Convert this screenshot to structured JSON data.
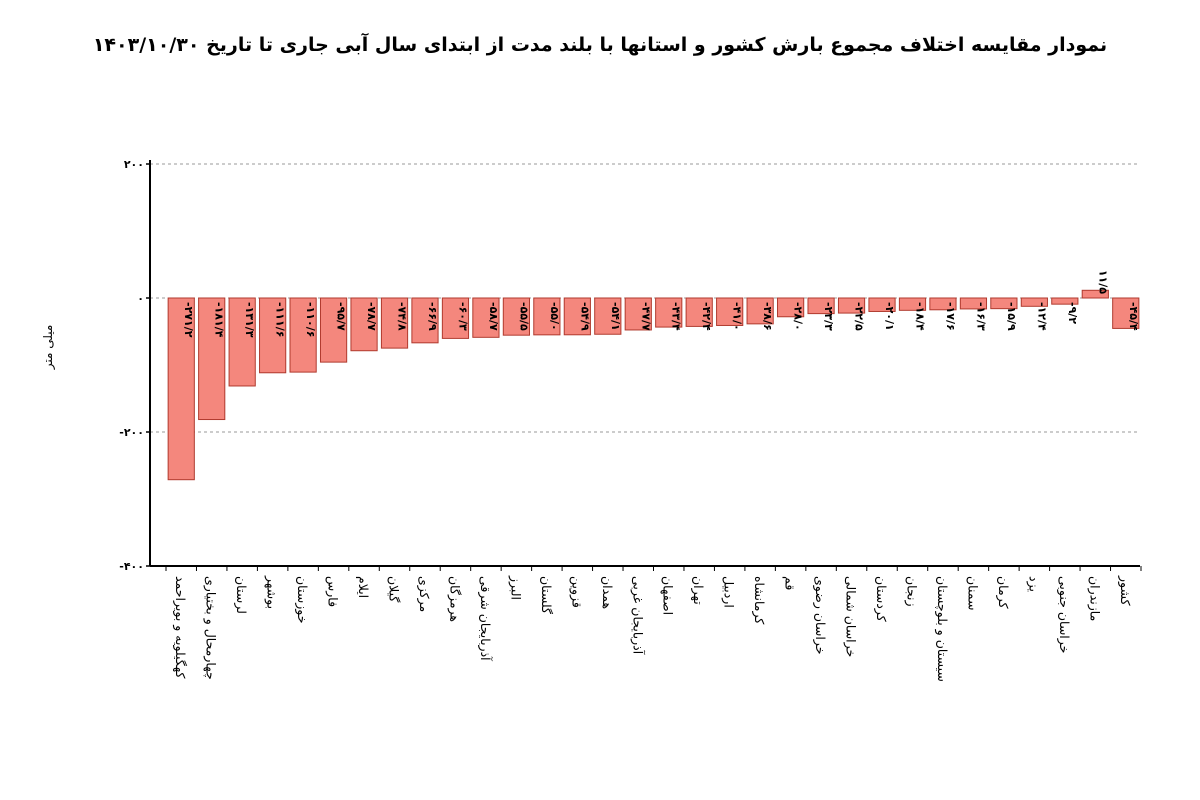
{
  "chart_data": {
    "type": "bar",
    "title": "نمودار مقایسه اختلاف مجموع بارش کشور و استانها با بلند مدت از ابتدای سال آبی جاری تا تاریخ ۱۴۰۳/۱۰/۳۰",
    "ylabel": "میلی متر",
    "xlabel": "",
    "ylim": [
      -400,
      200
    ],
    "yticks": [
      200,
      0,
      -200,
      -400
    ],
    "ytick_labels": [
      "۲۰۰",
      "۰",
      "-۲۰۰",
      "-۴۰۰"
    ],
    "grid": "horizontal-dashed",
    "bar_color": "#f4877d",
    "bar_edge_color": "#b03a2e",
    "categories": [
      "کهگیلویه و بویراحمد",
      "چهارمحال و بختیاری",
      "لرستان",
      "بوشهر",
      "خوزستان",
      "فارس",
      "ایلام",
      "گیلان",
      "مرکزی",
      "هرمزگان",
      "آذربایجان شرقی",
      "البرز",
      "گلستان",
      "قزوین",
      "همدان",
      "آذربایجان غربی",
      "اصفهان",
      "تهران",
      "اردبیل",
      "کرمانشاه",
      "قم",
      "خراسان رضوی",
      "خراسان شمالی",
      "کردستان",
      "زنجان",
      "سیستان و بلوچستان",
      "سمنان",
      "کرمان",
      "یزد",
      "خراسان جنوبی",
      "مازندران",
      "کشور"
    ],
    "values": [
      -271.2,
      -181.4,
      -131.3,
      -111.6,
      -110.6,
      -95.7,
      -78.7,
      -74.8,
      -66.9,
      -60.3,
      -58.7,
      -55.5,
      -55.0,
      -54.9,
      -54.1,
      -47.7,
      -43.4,
      -42.4,
      -41.0,
      -38.6,
      -28.0,
      -23.3,
      -22.5,
      -20.1,
      -18.4,
      -17.6,
      -16.3,
      -15.9,
      -12.4,
      -9.2,
      11.5,
      -45.4
    ],
    "value_labels": [
      "-۲۷۱/۲",
      "-۱۸۱/۴",
      "-۱۳۱/۳",
      "-۱۱۱/۶",
      "-۱۱۰/۶",
      "-۹۵/۷",
      "-۷۸/۷",
      "-۷۴/۸",
      "-۶۶/۹",
      "-۶۰/۳",
      "-۵۸/۷",
      "-۵۵/۵",
      "-۵۵/۰",
      "-۵۴/۹",
      "-۵۴/۱",
      "-۴۷/۷",
      "-۴۳/۴",
      "-۴۲/۴",
      "-۴۱/۰",
      "-۳۸/۶",
      "-۲۸/۰",
      "-۲۳/۳",
      "-۲۲/۵",
      "-۲۰/۱",
      "-۱۸/۴",
      "-۱۷/۶",
      "-۱۶/۳",
      "-۱۵/۹",
      "-۱۲/۴",
      "-۹/۲",
      "۱۱/۵",
      "-۴۵/۴"
    ]
  }
}
